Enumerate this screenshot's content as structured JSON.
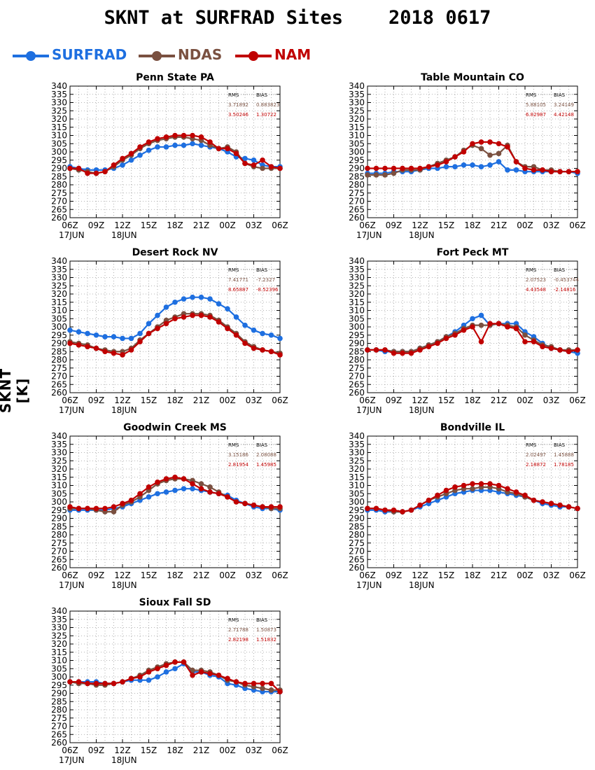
{
  "title": "SKNT at SURFRAD Sites    2018 0617",
  "ylabel": "SKNT [K]",
  "legend": [
    {
      "label": "SURFRAD",
      "color": "#1e6fe0"
    },
    {
      "label": "NDAS",
      "color": "#7a5040"
    },
    {
      "label": "NAM",
      "color": "#c00000"
    }
  ],
  "stats_headers": [
    "RMS",
    "BIAS"
  ],
  "chart_data": [
    {
      "type": "line",
      "title": "Penn State PA",
      "x": [
        "06Z",
        "07Z",
        "08Z",
        "09Z",
        "10Z",
        "11Z",
        "12Z",
        "13Z",
        "14Z",
        "15Z",
        "16Z",
        "17Z",
        "18Z",
        "19Z",
        "20Z",
        "21Z",
        "22Z",
        "23Z",
        "00Z",
        "01Z",
        "02Z",
        "03Z",
        "04Z",
        "05Z",
        "06Z"
      ],
      "xticks": [
        "06Z",
        "09Z",
        "12Z",
        "15Z",
        "18Z",
        "21Z",
        "00Z",
        "03Z",
        "06Z"
      ],
      "date_labels": [
        "17JUN",
        "18JUN"
      ],
      "yticks": [
        260,
        265,
        270,
        275,
        280,
        285,
        290,
        295,
        300,
        305,
        310,
        315,
        320,
        325,
        330,
        335,
        340
      ],
      "ylim": [
        260,
        340
      ],
      "stats": {
        "NDAS": {
          "rms": "3.71892",
          "bias": "0.883823"
        },
        "NAM": {
          "rms": "3.50246",
          "bias": "1.30722"
        }
      },
      "series": [
        {
          "name": "SURFRAD",
          "values": [
            291,
            290,
            289,
            289,
            289,
            290,
            292,
            295,
            298,
            301,
            303,
            303,
            304,
            304,
            305,
            304,
            303,
            302,
            300,
            297,
            296,
            295,
            292,
            291,
            291
          ]
        },
        {
          "name": "NDAS",
          "values": [
            290,
            289,
            288,
            287,
            288,
            291,
            295,
            298,
            302,
            305,
            307,
            308,
            309,
            309,
            308,
            307,
            304,
            302,
            303,
            300,
            293,
            291,
            290,
            290,
            290
          ]
        },
        {
          "name": "NAM",
          "values": [
            290,
            290,
            287,
            287,
            288,
            292,
            296,
            299,
            303,
            306,
            308,
            309,
            310,
            310,
            310,
            309,
            306,
            302,
            302,
            299,
            293,
            292,
            295,
            291,
            290
          ]
        }
      ]
    },
    {
      "type": "line",
      "title": "Table Mountain CO",
      "x": [
        "06Z",
        "07Z",
        "08Z",
        "09Z",
        "10Z",
        "11Z",
        "12Z",
        "13Z",
        "14Z",
        "15Z",
        "16Z",
        "17Z",
        "18Z",
        "19Z",
        "20Z",
        "21Z",
        "22Z",
        "23Z",
        "00Z",
        "01Z",
        "02Z",
        "03Z",
        "04Z",
        "05Z",
        "06Z"
      ],
      "xticks": [
        "06Z",
        "09Z",
        "12Z",
        "15Z",
        "18Z",
        "21Z",
        "00Z",
        "03Z",
        "06Z"
      ],
      "date_labels": [
        "17JUN",
        "18JUN"
      ],
      "yticks": [
        260,
        265,
        270,
        275,
        280,
        285,
        290,
        295,
        300,
        305,
        310,
        315,
        320,
        325,
        330,
        335,
        340
      ],
      "ylim": [
        260,
        340
      ],
      "stats": {
        "NDAS": {
          "rms": "5.88105",
          "bias": "3.24149"
        },
        "NAM": {
          "rms": "6.82987",
          "bias": "4.42148"
        }
      },
      "series": [
        {
          "name": "SURFRAD",
          "values": [
            287,
            287,
            287,
            288,
            288,
            288,
            289,
            290,
            290,
            291,
            291,
            292,
            292,
            291,
            292,
            294,
            289,
            289,
            288,
            288,
            288,
            288,
            288,
            288,
            287
          ]
        },
        {
          "name": "NDAS",
          "values": [
            286,
            286,
            286,
            287,
            289,
            289,
            289,
            291,
            293,
            295,
            297,
            301,
            304,
            302,
            298,
            299,
            304,
            294,
            291,
            291,
            289,
            289,
            288,
            288,
            288
          ]
        },
        {
          "name": "NAM",
          "values": [
            290,
            290,
            290,
            290,
            290,
            290,
            290,
            291,
            292,
            294,
            297,
            300,
            305,
            306,
            306,
            305,
            303,
            294,
            290,
            289,
            289,
            288,
            288,
            288,
            288
          ]
        }
      ]
    },
    {
      "type": "line",
      "title": "Desert Rock NV",
      "x": [
        "06Z",
        "07Z",
        "08Z",
        "09Z",
        "10Z",
        "11Z",
        "12Z",
        "13Z",
        "14Z",
        "15Z",
        "16Z",
        "17Z",
        "18Z",
        "19Z",
        "20Z",
        "21Z",
        "22Z",
        "23Z",
        "00Z",
        "01Z",
        "02Z",
        "03Z",
        "04Z",
        "05Z",
        "06Z"
      ],
      "xticks": [
        "06Z",
        "09Z",
        "12Z",
        "15Z",
        "18Z",
        "21Z",
        "00Z",
        "03Z",
        "06Z"
      ],
      "date_labels": [
        "17JUN",
        "18JUN"
      ],
      "yticks": [
        260,
        265,
        270,
        275,
        280,
        285,
        290,
        295,
        300,
        305,
        310,
        315,
        320,
        325,
        330,
        335,
        340
      ],
      "ylim": [
        260,
        340
      ],
      "stats": {
        "NDAS": {
          "rms": "7.41771",
          "bias": "-7.2327"
        },
        "NAM": {
          "rms": "8.65887",
          "bias": "-8.52396"
        }
      },
      "series": [
        {
          "name": "SURFRAD",
          "values": [
            298,
            297,
            296,
            295,
            294,
            294,
            293,
            293,
            296,
            302,
            307,
            312,
            315,
            317,
            318,
            318,
            317,
            314,
            311,
            306,
            301,
            298,
            296,
            295,
            293
          ]
        },
        {
          "name": "NDAS",
          "values": [
            291,
            290,
            289,
            287,
            286,
            285,
            285,
            287,
            292,
            296,
            300,
            304,
            306,
            308,
            308,
            308,
            307,
            304,
            300,
            296,
            291,
            288,
            286,
            285,
            284
          ]
        },
        {
          "name": "NAM",
          "values": [
            290,
            289,
            288,
            287,
            285,
            284,
            283,
            286,
            291,
            296,
            299,
            302,
            305,
            306,
            307,
            307,
            306,
            303,
            299,
            295,
            290,
            287,
            286,
            285,
            283
          ]
        }
      ]
    },
    {
      "type": "line",
      "title": "Fort Peck MT",
      "x": [
        "06Z",
        "07Z",
        "08Z",
        "09Z",
        "10Z",
        "11Z",
        "12Z",
        "13Z",
        "14Z",
        "15Z",
        "16Z",
        "17Z",
        "18Z",
        "19Z",
        "20Z",
        "21Z",
        "22Z",
        "23Z",
        "00Z",
        "01Z",
        "02Z",
        "03Z",
        "04Z",
        "05Z",
        "06Z"
      ],
      "xticks": [
        "06Z",
        "09Z",
        "12Z",
        "15Z",
        "18Z",
        "21Z",
        "00Z",
        "03Z",
        "06Z"
      ],
      "date_labels": [
        "17JUN",
        "18JUN"
      ],
      "yticks": [
        260,
        265,
        270,
        275,
        280,
        285,
        290,
        295,
        300,
        305,
        310,
        315,
        320,
        325,
        330,
        335,
        340
      ],
      "ylim": [
        260,
        340
      ],
      "stats": {
        "NDAS": {
          "rms": "2.07523",
          "bias": "-0.453744"
        },
        "NAM": {
          "rms": "4.43548",
          "bias": "-2.14816"
        }
      },
      "series": [
        {
          "name": "SURFRAD",
          "values": [
            286,
            286,
            285,
            285,
            285,
            285,
            287,
            289,
            291,
            294,
            297,
            301,
            305,
            307,
            301,
            302,
            302,
            302,
            297,
            294,
            290,
            287,
            286,
            285,
            284
          ]
        },
        {
          "name": "NDAS",
          "values": [
            286,
            286,
            286,
            285,
            285,
            285,
            287,
            289,
            291,
            294,
            296,
            299,
            301,
            301,
            301,
            302,
            301,
            300,
            295,
            292,
            289,
            288,
            286,
            286,
            286
          ]
        },
        {
          "name": "NAM",
          "values": [
            286,
            286,
            286,
            284,
            284,
            284,
            286,
            288,
            290,
            293,
            295,
            298,
            300,
            291,
            302,
            302,
            300,
            299,
            291,
            291,
            288,
            287,
            286,
            285,
            286
          ]
        }
      ]
    },
    {
      "type": "line",
      "title": "Goodwin Creek MS",
      "x": [
        "06Z",
        "07Z",
        "08Z",
        "09Z",
        "10Z",
        "11Z",
        "12Z",
        "13Z",
        "14Z",
        "15Z",
        "16Z",
        "17Z",
        "18Z",
        "19Z",
        "20Z",
        "21Z",
        "22Z",
        "23Z",
        "00Z",
        "01Z",
        "02Z",
        "03Z",
        "04Z",
        "05Z",
        "06Z"
      ],
      "xticks": [
        "06Z",
        "09Z",
        "12Z",
        "15Z",
        "18Z",
        "21Z",
        "00Z",
        "03Z",
        "06Z"
      ],
      "date_labels": [
        "17JUN",
        "18JUN"
      ],
      "yticks": [
        260,
        265,
        270,
        275,
        280,
        285,
        290,
        295,
        300,
        305,
        310,
        315,
        320,
        325,
        330,
        335,
        340
      ],
      "ylim": [
        260,
        340
      ],
      "stats": {
        "NDAS": {
          "rms": "3.15186",
          "bias": "2.08088"
        },
        "NAM": {
          "rms": "2.81954",
          "bias": "1.45985"
        }
      },
      "series": [
        {
          "name": "SURFRAD",
          "values": [
            295,
            295,
            295,
            295,
            295,
            296,
            297,
            299,
            301,
            303,
            305,
            306,
            307,
            308,
            308,
            307,
            306,
            305,
            304,
            301,
            299,
            297,
            296,
            296,
            295
          ]
        },
        {
          "name": "NDAS",
          "values": [
            296,
            296,
            296,
            295,
            294,
            294,
            298,
            300,
            303,
            307,
            311,
            313,
            314,
            314,
            313,
            311,
            309,
            306,
            303,
            300,
            299,
            298,
            297,
            296,
            296
          ]
        },
        {
          "name": "NAM",
          "values": [
            297,
            296,
            296,
            296,
            296,
            297,
            299,
            301,
            305,
            309,
            312,
            314,
            315,
            314,
            311,
            308,
            306,
            305,
            303,
            300,
            299,
            298,
            297,
            297,
            297
          ]
        }
      ]
    },
    {
      "type": "line",
      "title": "Bondville IL",
      "x": [
        "06Z",
        "07Z",
        "08Z",
        "09Z",
        "10Z",
        "11Z",
        "12Z",
        "13Z",
        "14Z",
        "15Z",
        "16Z",
        "17Z",
        "18Z",
        "19Z",
        "20Z",
        "21Z",
        "22Z",
        "23Z",
        "00Z",
        "01Z",
        "02Z",
        "03Z",
        "04Z",
        "05Z",
        "06Z"
      ],
      "xticks": [
        "06Z",
        "09Z",
        "12Z",
        "15Z",
        "18Z",
        "21Z",
        "00Z",
        "03Z",
        "06Z"
      ],
      "date_labels": [
        "17JUN",
        "18JUN"
      ],
      "yticks": [
        260,
        265,
        270,
        275,
        280,
        285,
        290,
        295,
        300,
        305,
        310,
        315,
        320,
        325,
        330,
        335,
        340
      ],
      "ylim": [
        260,
        340
      ],
      "stats": {
        "NDAS": {
          "rms": "2.02497",
          "bias": "1.45888"
        },
        "NAM": {
          "rms": "2.18872",
          "bias": "1.78185"
        }
      },
      "series": [
        {
          "name": "SURFRAD",
          "values": [
            295,
            295,
            294,
            294,
            294,
            295,
            297,
            299,
            301,
            303,
            305,
            306,
            307,
            307,
            307,
            306,
            305,
            304,
            303,
            301,
            299,
            298,
            297,
            297,
            296
          ]
        },
        {
          "name": "NDAS",
          "values": [
            296,
            296,
            295,
            294,
            294,
            295,
            298,
            301,
            303,
            305,
            307,
            308,
            308,
            309,
            309,
            308,
            306,
            305,
            303,
            301,
            300,
            299,
            298,
            297,
            296
          ]
        },
        {
          "name": "NAM",
          "values": [
            296,
            296,
            295,
            295,
            294,
            295,
            298,
            301,
            304,
            307,
            309,
            310,
            311,
            311,
            311,
            310,
            308,
            306,
            304,
            301,
            300,
            299,
            298,
            297,
            296
          ]
        }
      ]
    },
    {
      "type": "line",
      "title": "Sioux Fall SD",
      "x": [
        "06Z",
        "07Z",
        "08Z",
        "09Z",
        "10Z",
        "11Z",
        "12Z",
        "13Z",
        "14Z",
        "15Z",
        "16Z",
        "17Z",
        "18Z",
        "19Z",
        "20Z",
        "21Z",
        "22Z",
        "23Z",
        "00Z",
        "01Z",
        "02Z",
        "03Z",
        "04Z",
        "05Z",
        "06Z"
      ],
      "xticks": [
        "06Z",
        "09Z",
        "12Z",
        "15Z",
        "18Z",
        "21Z",
        "00Z",
        "03Z",
        "06Z"
      ],
      "date_labels": [
        "17JUN",
        "18JUN"
      ],
      "yticks": [
        260,
        265,
        270,
        275,
        280,
        285,
        290,
        295,
        300,
        305,
        310,
        315,
        320,
        325,
        330,
        335,
        340
      ],
      "ylim": [
        260,
        340
      ],
      "stats": {
        "NDAS": {
          "rms": "2.71788",
          "bias": "1.50873"
        },
        "NAM": {
          "rms": "2.82198",
          "bias": "1.51832"
        }
      },
      "series": [
        {
          "name": "SURFRAD",
          "values": [
            297,
            297,
            297,
            297,
            296,
            296,
            297,
            298,
            298,
            298,
            300,
            303,
            305,
            308,
            303,
            303,
            301,
            300,
            296,
            295,
            293,
            292,
            291,
            291,
            291
          ]
        },
        {
          "name": "NDAS",
          "values": [
            297,
            296,
            296,
            295,
            295,
            296,
            297,
            299,
            301,
            304,
            306,
            308,
            309,
            309,
            304,
            304,
            303,
            301,
            298,
            297,
            295,
            294,
            293,
            292,
            292
          ]
        },
        {
          "name": "NAM",
          "values": [
            297,
            297,
            296,
            296,
            296,
            296,
            297,
            299,
            300,
            303,
            305,
            307,
            309,
            309,
            301,
            303,
            302,
            301,
            299,
            297,
            296,
            296,
            296,
            296,
            291
          ]
        }
      ]
    }
  ]
}
